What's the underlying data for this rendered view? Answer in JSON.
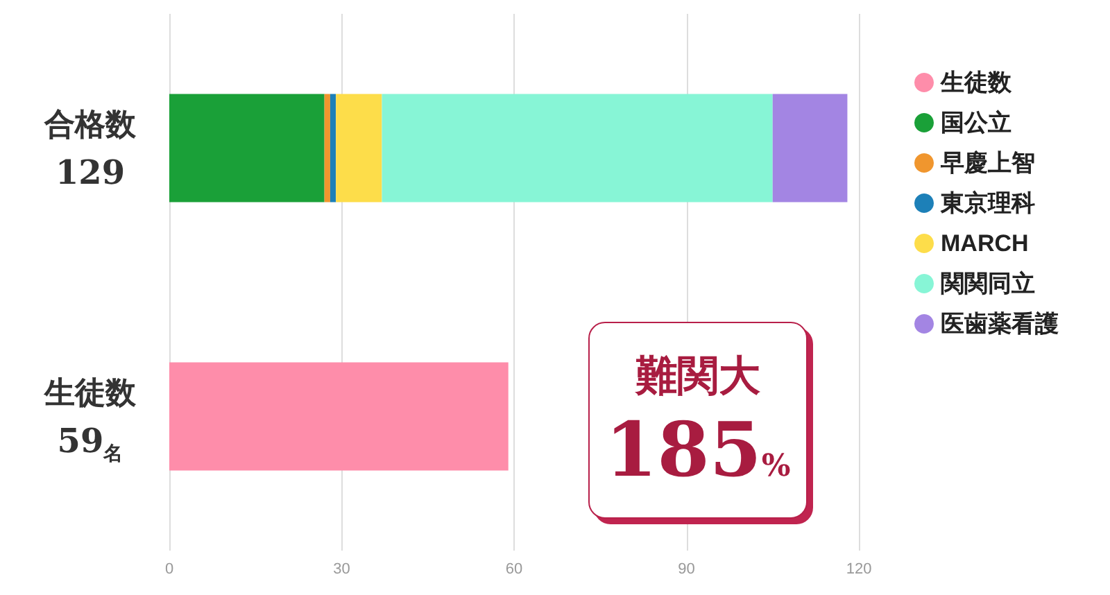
{
  "chart_data": {
    "type": "bar",
    "orientation": "horizontal",
    "stacked": true,
    "categories": [
      "合格数\n129",
      "生徒数\n59名"
    ],
    "series": [
      {
        "name": "生徒数",
        "color": "#fe8daa",
        "values": [
          null,
          59
        ]
      },
      {
        "name": "国公立",
        "color": "#1aa038",
        "values": [
          27,
          null
        ]
      },
      {
        "name": "早慶上智",
        "color": "#f0962e",
        "values": [
          1,
          null
        ]
      },
      {
        "name": "東京理科",
        "color": "#1d80b8",
        "values": [
          1,
          null
        ]
      },
      {
        "name": "MARCH",
        "color": "#fddd4a",
        "values": [
          8,
          null
        ]
      },
      {
        "name": "関関同立",
        "color": "#87f5d6",
        "values": [
          68,
          null
        ]
      },
      {
        "name": "医歯薬看護",
        "color": "#a385e3",
        "values": [
          13,
          null
        ]
      }
    ],
    "xlim": [
      0,
      120
    ],
    "xticks": [
      0,
      30,
      60,
      90,
      120
    ],
    "grid": "x",
    "legend": "right",
    "annotations": [
      "難関大",
      "185%"
    ]
  }
}
